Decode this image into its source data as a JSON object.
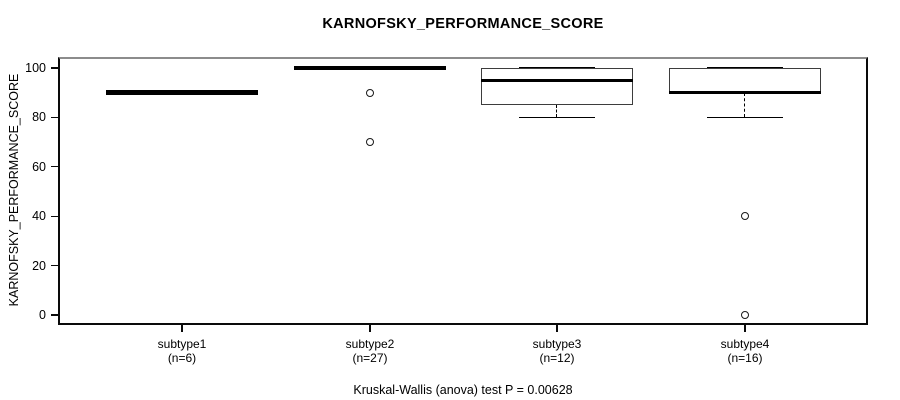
{
  "title": "KARNOFSKY_PERFORMANCE_SCORE",
  "y_axis": {
    "label": "KARNOFSKY_PERFORMANCE_SCORE",
    "ticks": [
      0,
      20,
      40,
      60,
      80,
      100
    ],
    "range": [
      0,
      100
    ]
  },
  "footer": "Kruskal-Wallis (anova) test P = 0.00628",
  "colors": {
    "foreground": "#000000",
    "background": "#ffffff",
    "plot_border_top": "#8c8c8c",
    "plot_border": "#0a0a0a"
  },
  "chart_data": {
    "type": "boxplot",
    "title": "KARNOFSKY_PERFORMANCE_SCORE",
    "xlabel": "",
    "ylabel": "KARNOFSKY_PERFORMANCE_SCORE",
    "ylim": [
      0,
      100
    ],
    "yticks": [
      0,
      20,
      40,
      60,
      80,
      100
    ],
    "grid": false,
    "legend": "none",
    "annotation": "Kruskal-Wallis (anova) test P = 0.00628",
    "categories": [
      "subtype1",
      "subtype2",
      "subtype3",
      "subtype4"
    ],
    "groups": [
      {
        "label": "subtype1",
        "sublabel": "(n=6)",
        "n": 6,
        "whisker_low": 90,
        "q1": 90,
        "median": 90,
        "q3": 90,
        "whisker_high": 90,
        "outliers": []
      },
      {
        "label": "subtype2",
        "sublabel": "(n=27)",
        "n": 27,
        "whisker_low": 100,
        "q1": 100,
        "median": 100,
        "q3": 100,
        "whisker_high": 100,
        "outliers": [
          90,
          70
        ]
      },
      {
        "label": "subtype3",
        "sublabel": "(n=12)",
        "n": 12,
        "whisker_low": 80,
        "q1": 85,
        "median": 95,
        "q3": 100,
        "whisker_high": 100,
        "outliers": []
      },
      {
        "label": "subtype4",
        "sublabel": "(n=16)",
        "n": 16,
        "whisker_low": 80,
        "q1": 90,
        "median": 90,
        "q3": 100,
        "whisker_high": 100,
        "outliers": [
          40,
          0
        ]
      }
    ]
  }
}
